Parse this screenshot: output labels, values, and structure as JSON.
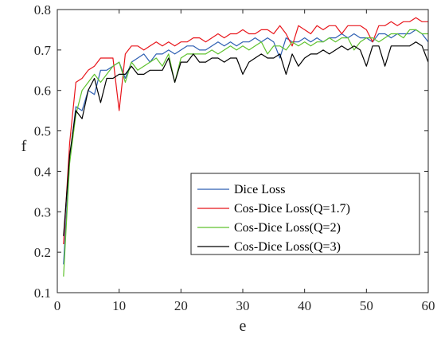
{
  "chart_data": {
    "type": "line",
    "xlabel": "e",
    "ylabel": "f",
    "xlim": [
      0,
      60
    ],
    "ylim": [
      0.1,
      0.8
    ],
    "xticks": [
      "0",
      "10",
      "20",
      "30",
      "40",
      "50",
      "60"
    ],
    "yticks": [
      "0.1",
      "0.2",
      "0.3",
      "0.4",
      "0.5",
      "0.6",
      "0.7",
      "0.8"
    ],
    "grid": false,
    "legend_position": "bottom-right",
    "x": [
      1,
      2,
      3,
      4,
      5,
      6,
      7,
      8,
      9,
      10,
      11,
      12,
      13,
      14,
      15,
      16,
      17,
      18,
      19,
      20,
      21,
      22,
      23,
      24,
      25,
      26,
      27,
      28,
      29,
      30,
      31,
      32,
      33,
      34,
      35,
      36,
      37,
      38,
      39,
      40,
      41,
      42,
      43,
      44,
      45,
      46,
      47,
      48,
      49,
      50,
      51,
      52,
      53,
      54,
      55,
      56,
      57,
      58,
      59,
      60
    ],
    "series": [
      {
        "name": "Dice Loss",
        "color": "#2e5fb2",
        "values": [
          0.17,
          0.43,
          0.56,
          0.55,
          0.6,
          0.59,
          0.65,
          0.65,
          0.66,
          0.67,
          0.63,
          0.67,
          0.68,
          0.69,
          0.67,
          0.69,
          0.69,
          0.7,
          0.69,
          0.7,
          0.71,
          0.71,
          0.7,
          0.7,
          0.71,
          0.72,
          0.71,
          0.72,
          0.71,
          0.72,
          0.72,
          0.73,
          0.72,
          0.73,
          0.72,
          0.68,
          0.73,
          0.72,
          0.72,
          0.73,
          0.72,
          0.73,
          0.72,
          0.73,
          0.73,
          0.74,
          0.73,
          0.74,
          0.73,
          0.73,
          0.72,
          0.74,
          0.74,
          0.73,
          0.74,
          0.74,
          0.74,
          0.75,
          0.74,
          0.72
        ]
      },
      {
        "name": "Cos-Dice Loss(Q=1.7)",
        "color": "#e8151b",
        "values": [
          0.22,
          0.47,
          0.62,
          0.63,
          0.65,
          0.66,
          0.68,
          0.68,
          0.68,
          0.55,
          0.69,
          0.71,
          0.71,
          0.7,
          0.71,
          0.72,
          0.71,
          0.72,
          0.71,
          0.72,
          0.72,
          0.73,
          0.73,
          0.72,
          0.73,
          0.74,
          0.73,
          0.74,
          0.74,
          0.75,
          0.74,
          0.74,
          0.75,
          0.75,
          0.74,
          0.76,
          0.74,
          0.71,
          0.76,
          0.75,
          0.74,
          0.76,
          0.75,
          0.76,
          0.76,
          0.74,
          0.76,
          0.76,
          0.76,
          0.75,
          0.72,
          0.76,
          0.76,
          0.77,
          0.76,
          0.77,
          0.77,
          0.78,
          0.77,
          0.77
        ]
      },
      {
        "name": "Cos-Dice Loss(Q=2)",
        "color": "#5fc22e",
        "values": [
          0.14,
          0.42,
          0.54,
          0.6,
          0.62,
          0.64,
          0.62,
          0.64,
          0.66,
          0.67,
          0.62,
          0.67,
          0.65,
          0.66,
          0.67,
          0.68,
          0.66,
          0.69,
          0.62,
          0.68,
          0.69,
          0.69,
          0.69,
          0.69,
          0.7,
          0.69,
          0.7,
          0.71,
          0.7,
          0.71,
          0.7,
          0.71,
          0.72,
          0.69,
          0.71,
          0.71,
          0.7,
          0.72,
          0.71,
          0.72,
          0.71,
          0.72,
          0.72,
          0.73,
          0.72,
          0.73,
          0.73,
          0.7,
          0.72,
          0.73,
          0.73,
          0.72,
          0.73,
          0.74,
          0.74,
          0.73,
          0.75,
          0.75,
          0.74,
          0.74
        ]
      },
      {
        "name": "Cos-Dice Loss(Q=3)",
        "color": "#000000",
        "values": [
          0.24,
          0.44,
          0.55,
          0.53,
          0.6,
          0.63,
          0.57,
          0.63,
          0.63,
          0.64,
          0.64,
          0.66,
          0.64,
          0.64,
          0.65,
          0.65,
          0.65,
          0.68,
          0.62,
          0.67,
          0.67,
          0.69,
          0.67,
          0.67,
          0.68,
          0.68,
          0.67,
          0.68,
          0.68,
          0.64,
          0.67,
          0.68,
          0.69,
          0.68,
          0.68,
          0.69,
          0.64,
          0.69,
          0.66,
          0.68,
          0.69,
          0.69,
          0.7,
          0.69,
          0.7,
          0.71,
          0.7,
          0.71,
          0.7,
          0.66,
          0.71,
          0.71,
          0.66,
          0.71,
          0.71,
          0.71,
          0.71,
          0.72,
          0.71,
          0.67
        ]
      }
    ]
  }
}
